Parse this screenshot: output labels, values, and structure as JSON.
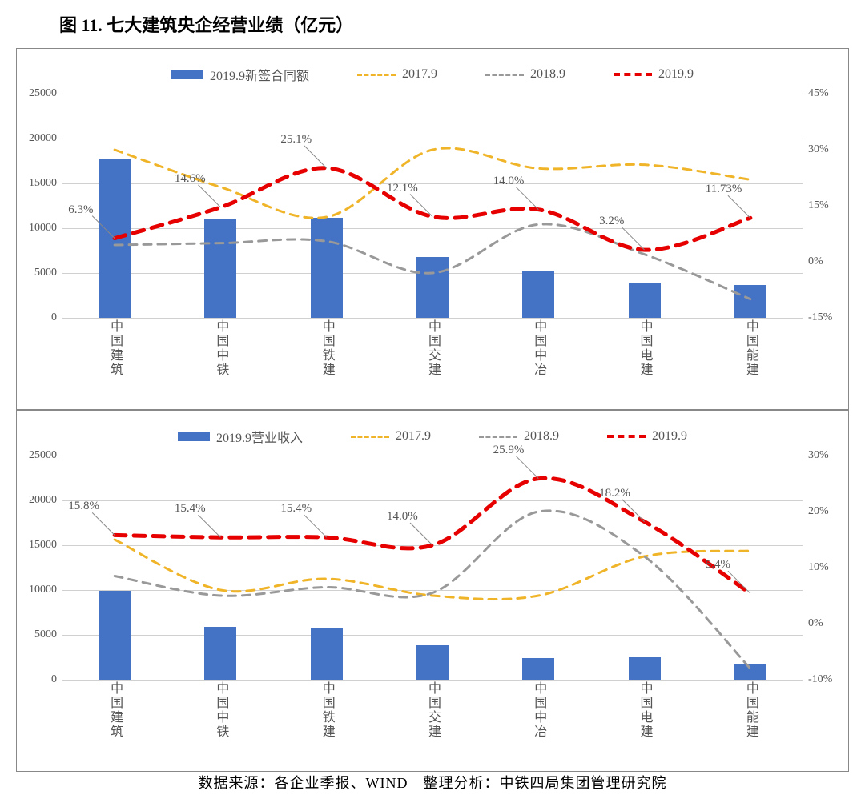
{
  "title": "图 11. 七大建筑央企经营业绩（亿元）",
  "source": "数据来源：各企业季报、WIND　整理分析：中铁四局集团管理研究院",
  "colors": {
    "bar": "#4472c4",
    "line_2017": "#f0b429",
    "line_2018": "#999999",
    "line_2019": "#e60000",
    "grid": "#d0d0d0",
    "text": "#555555",
    "border": "#888888"
  },
  "categories": [
    "中国建筑",
    "中国中铁",
    "中国铁建",
    "中国交建",
    "中国中冶",
    "中国电建",
    "中国能建"
  ],
  "chart1": {
    "legend_bar": "2019.9新签合同额",
    "legend_lines": [
      "2017.9",
      "2018.9",
      "2019.9"
    ],
    "y_left": {
      "min": 0,
      "max": 25000,
      "step": 5000
    },
    "y_right": {
      "min": -15,
      "max": 45,
      "step": 15,
      "suffix": "%"
    },
    "bars": [
      17800,
      11000,
      11200,
      6800,
      5200,
      3900,
      3700
    ],
    "line_2017": [
      30,
      20,
      12,
      30,
      25,
      26,
      22
    ],
    "line_2018": [
      4.5,
      5,
      5.5,
      -3,
      10,
      2,
      -10
    ],
    "line_2019": [
      6.3,
      14.6,
      25.1,
      12.1,
      14.0,
      3.2,
      11.73
    ],
    "labels_2019": [
      "6.3%",
      "14.6%",
      "25.1%",
      "12.1%",
      "14.0%",
      "3.2%",
      "11.73%"
    ]
  },
  "chart2": {
    "legend_bar": "2019.9营业收入",
    "legend_lines": [
      "2017.9",
      "2018.9",
      "2019.9"
    ],
    "y_left": {
      "min": 0,
      "max": 25000,
      "step": 5000
    },
    "y_right": {
      "min": -10,
      "max": 30,
      "step": 10,
      "suffix": "%"
    },
    "bars": [
      9900,
      5900,
      5800,
      3800,
      2400,
      2500,
      1700
    ],
    "line_2017": [
      15,
      6,
      8,
      5,
      5,
      12,
      13
    ],
    "line_2018": [
      8.5,
      5,
      6.5,
      5.5,
      20,
      12,
      -8
    ],
    "line_2019": [
      15.8,
      15.4,
      15.4,
      14.0,
      25.9,
      18.2,
      5.4
    ],
    "labels_2019": [
      "15.8%",
      "15.4%",
      "15.4%",
      "14.0%",
      "25.9%",
      "18.2%",
      "5.4%"
    ]
  }
}
